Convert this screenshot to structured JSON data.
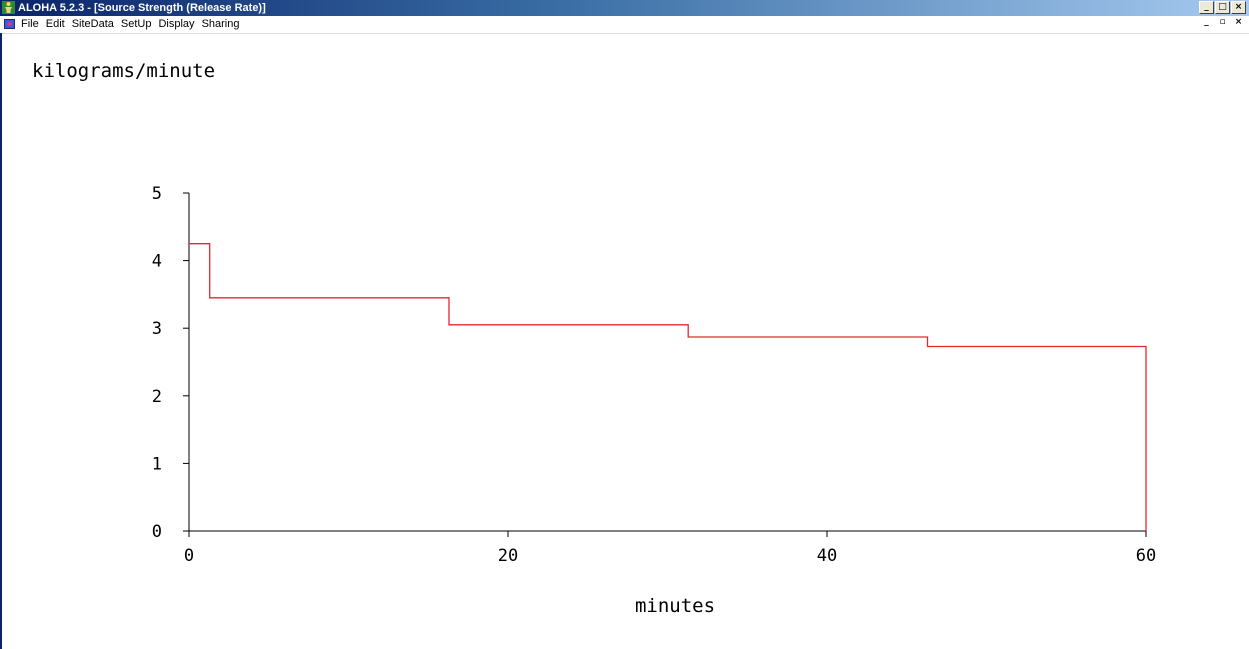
{
  "window": {
    "title": "ALOHA 5.2.3 - [Source Strength (Release Rate)]",
    "controls": [
      "_",
      "□",
      "×"
    ],
    "mdi_controls": [
      "_",
      "▫",
      "×"
    ],
    "app_icon": "aloha-person-icon",
    "doc_icon": "document-icon"
  },
  "menu": {
    "items": [
      "File",
      "Edit",
      "SiteData",
      "SetUp",
      "Display",
      "Sharing"
    ]
  },
  "chart_data": {
    "type": "line",
    "step": true,
    "ylabel": "kilograms/minute",
    "xlabel": "minutes",
    "xlim": [
      0,
      60
    ],
    "ylim": [
      0,
      5
    ],
    "xticks": [
      0,
      20,
      40,
      60
    ],
    "yticks": [
      0,
      1,
      2,
      3,
      4,
      5
    ],
    "grid": false,
    "series": [
      {
        "color": "#e8262c",
        "x": [
          0,
          1.3,
          1.3,
          16.3,
          16.3,
          31.3,
          31.3,
          46.3,
          46.3,
          60,
          60
        ],
        "y": [
          4.25,
          4.25,
          3.45,
          3.45,
          3.05,
          3.05,
          2.87,
          2.87,
          2.73,
          2.73,
          0
        ]
      }
    ]
  }
}
